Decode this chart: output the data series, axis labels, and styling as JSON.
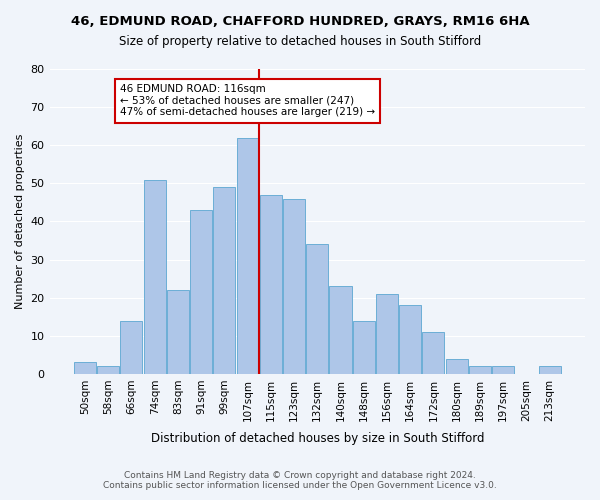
{
  "title1": "46, EDMUND ROAD, CHAFFORD HUNDRED, GRAYS, RM16 6HA",
  "title2": "Size of property relative to detached houses in South Stifford",
  "xlabel": "Distribution of detached houses by size in South Stifford",
  "ylabel": "Number of detached properties",
  "bar_labels": [
    "50sqm",
    "58sqm",
    "66sqm",
    "74sqm",
    "83sqm",
    "91sqm",
    "99sqm",
    "107sqm",
    "115sqm",
    "123sqm",
    "132sqm",
    "140sqm",
    "148sqm",
    "156sqm",
    "164sqm",
    "172sqm",
    "180sqm",
    "189sqm",
    "197sqm",
    "205sqm",
    "213sqm"
  ],
  "bar_heights": [
    3,
    2,
    14,
    51,
    22,
    43,
    49,
    62,
    47,
    46,
    34,
    23,
    14,
    21,
    18,
    11,
    4,
    2,
    2,
    0,
    2
  ],
  "bar_color": "#aec6e8",
  "bar_edge_color": "#6baed6",
  "vline_x": 8,
  "vline_color": "#cc0000",
  "annotation_text": "46 EDMUND ROAD: 116sqm\n← 53% of detached houses are smaller (247)\n47% of semi-detached houses are larger (219) →",
  "annotation_box_color": "#ffffff",
  "annotation_box_edge_color": "#cc0000",
  "ylim": [
    0,
    80
  ],
  "yticks": [
    0,
    10,
    20,
    30,
    40,
    50,
    60,
    70,
    80
  ],
  "footnote1": "Contains HM Land Registry data © Crown copyright and database right 2024.",
  "footnote2": "Contains public sector information licensed under the Open Government Licence v3.0.",
  "bg_color": "#f0f4fa",
  "plot_bg_color": "#f0f4fa"
}
